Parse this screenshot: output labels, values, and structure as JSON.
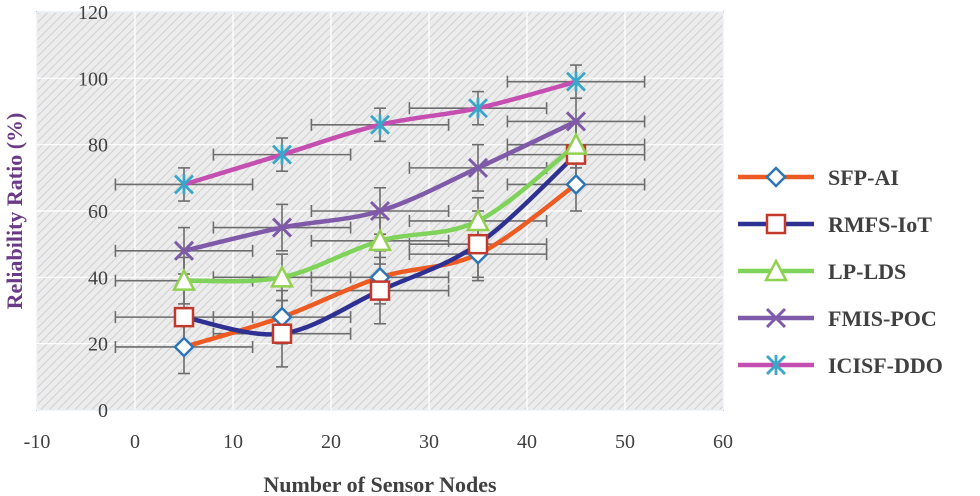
{
  "chart_data": {
    "type": "line",
    "title": "",
    "xlabel": "Number of Sensor Nodes",
    "ylabel": "Reliability Ratio (%)",
    "xlim": [
      -10,
      60
    ],
    "ylim": [
      0,
      120
    ],
    "xticks": [
      -10,
      0,
      10,
      20,
      30,
      40,
      50,
      60
    ],
    "yticks": [
      0,
      20,
      40,
      60,
      80,
      100,
      120
    ],
    "grid": true,
    "legend_position": "right",
    "x": [
      5,
      15,
      25,
      35,
      45
    ],
    "series": [
      {
        "name": "SFP-AI",
        "color": "#ed5a22",
        "marker": "diamond",
        "marker_color": "#2e75b6",
        "values": [
          19,
          28,
          40,
          47,
          68
        ],
        "x_error": 7,
        "y_error": 8
      },
      {
        "name": "RMFS-IoT",
        "color": "#2e3192",
        "marker": "square",
        "marker_color": "#c0392b",
        "values": [
          28,
          23,
          36,
          50,
          77
        ],
        "x_error": 7,
        "y_error": 10
      },
      {
        "name": "LP-LDS",
        "color": "#7fd35a",
        "marker": "triangle",
        "marker_color": "#92d050",
        "values": [
          39,
          40,
          51,
          57,
          80
        ],
        "x_error": 7,
        "y_error": 7
      },
      {
        "name": "FMIS-POC",
        "color": "#7f5aa8",
        "marker": "x",
        "marker_color": "#7f5aa8",
        "values": [
          48,
          55,
          60,
          73,
          87
        ],
        "x_error": 7,
        "y_error": 7
      },
      {
        "name": "ICISF-DDO",
        "color": "#c44fb0",
        "marker": "star",
        "marker_color": "#3aa7c9",
        "values": [
          68,
          77,
          86,
          91,
          99
        ],
        "x_error": 7,
        "y_error": 5
      }
    ]
  }
}
